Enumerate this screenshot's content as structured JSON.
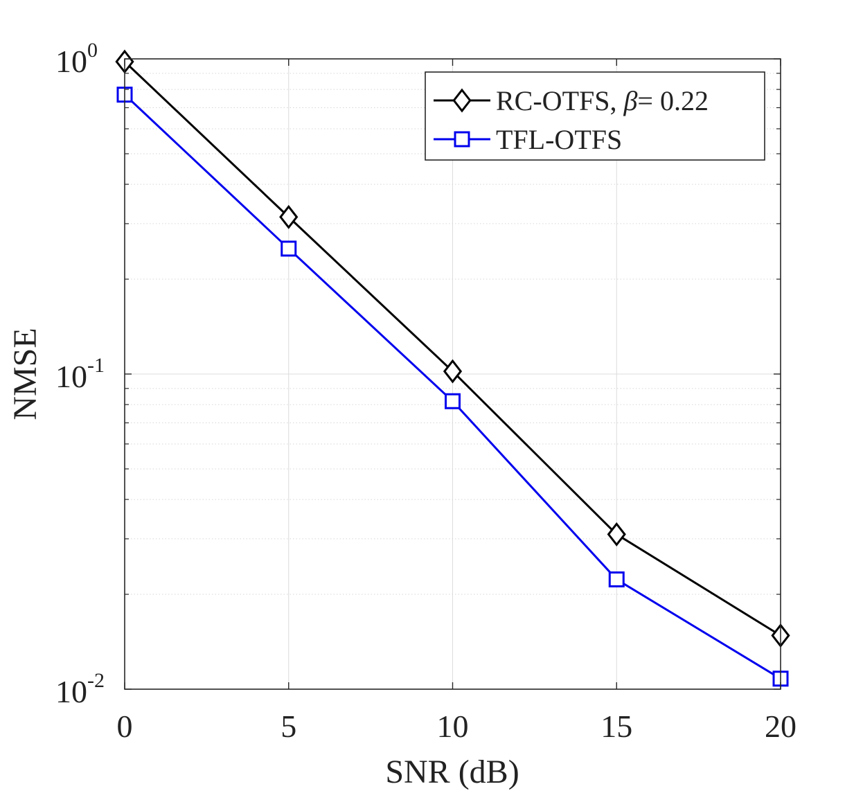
{
  "chart_data": {
    "type": "line",
    "title": "",
    "xlabel": "SNR (dB)",
    "ylabel": "NMSE",
    "x": [
      0,
      5,
      10,
      15,
      20
    ],
    "xlim": [
      0,
      20
    ],
    "ylim": [
      0.01,
      1
    ],
    "yscale": "log",
    "grid": true,
    "legend_position": "top-right",
    "x_ticks": [
      {
        "value": 0,
        "label": "0"
      },
      {
        "value": 5,
        "label": "5"
      },
      {
        "value": 10,
        "label": "10"
      },
      {
        "value": 15,
        "label": "15"
      },
      {
        "value": 20,
        "label": "20"
      }
    ],
    "y_ticks": [
      {
        "value": 1,
        "base": "10",
        "exponent": "0"
      },
      {
        "value": 0.1,
        "base": "10",
        "exponent": "-1"
      },
      {
        "value": 0.01,
        "base": "10",
        "exponent": "-2"
      }
    ],
    "series": [
      {
        "name": "RC-OTFS, β= 0.22",
        "legend_prefix": "RC-OTFS, ",
        "legend_symbol": "β",
        "legend_suffix": "= 0.22",
        "color": "#000000",
        "marker": "diamond",
        "values": [
          0.98,
          0.315,
          0.102,
          0.031,
          0.0148
        ]
      },
      {
        "name": "TFL-OTFS",
        "legend_prefix": "TFL-OTFS",
        "legend_symbol": "",
        "legend_suffix": "",
        "color": "#0000ee",
        "marker": "square",
        "values": [
          0.77,
          0.25,
          0.082,
          0.0223,
          0.0108
        ]
      }
    ]
  }
}
